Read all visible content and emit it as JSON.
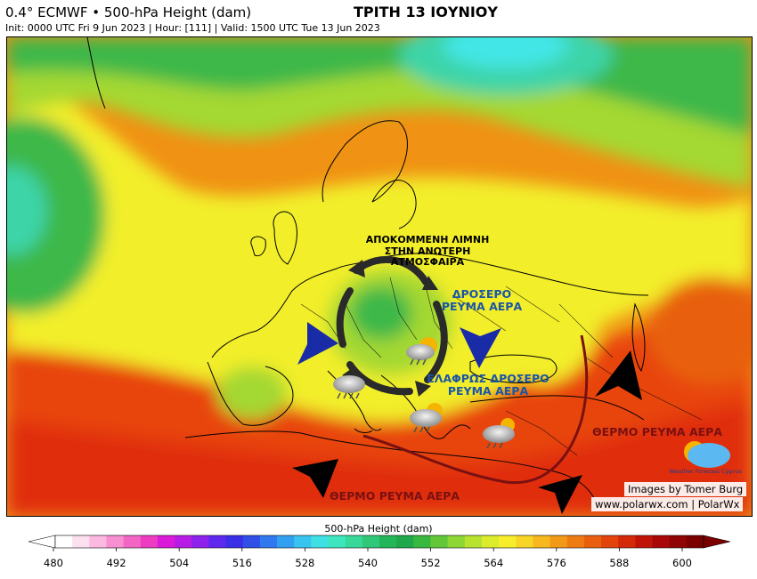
{
  "header": {
    "model": "0.4° ECMWF • 500-hPa Height (dam)",
    "init": "Init: 0000 UTC Fri 9 Jun 2023 | Hour: [111] | Valid: 1500 UTC Tue 13 Jun 2023",
    "title": "ΤΡΙΤΗ 13 ΙΟΥΝΙΟΥ"
  },
  "annotations": {
    "cutoff_low": [
      "ΑΠΟΚΟΜΜΕΝΗ ΛΙΜΝΗ",
      "ΣΤΗΝ ΑΝΩΤΕΡΗ",
      "ΑΤΜΟΣΦΑΙΡΑ"
    ],
    "cool_flow": [
      "ΔΡΟΣΕΡΟ",
      "ΡΕΥΜΑ ΑΕΡΑ"
    ],
    "slightly_cool_flow": [
      "ΕΛΑΦΡΩΣ ΔΡΟΣΕΡΟ",
      "ΡΕΥΜΑ ΑΕΡΑ"
    ],
    "warm_flow_east": "ΘΕΡΜΟ ΡΕΥΜΑ ΑΕΡΑ",
    "warm_flow_south": "ΘΕΡΜΟ ΡΕΥΜΑ ΑΕΡΑ"
  },
  "credits": {
    "logo_text": "Weather Forecast Cyprus",
    "line1": "Images by Tomer Burg",
    "line2": "www.polarwx.com | PolarWx"
  },
  "colorbar": {
    "label": "500-hPa Height (dam)",
    "ticks": [
      "480",
      "492",
      "504",
      "516",
      "528",
      "540",
      "552",
      "564",
      "576",
      "588",
      "600"
    ],
    "colors": [
      "#ffffff",
      "#fde0f0",
      "#fbb8e0",
      "#f78fd0",
      "#f266c4",
      "#ec3dc0",
      "#d91ad8",
      "#b61ce6",
      "#8c22ec",
      "#5f28ee",
      "#3a2ee6",
      "#2f4fe6",
      "#2f78ee",
      "#32a0f0",
      "#38c4ee",
      "#3ee0e4",
      "#3ee6bf",
      "#38d89a",
      "#2ec878",
      "#22b658",
      "#1ea84a",
      "#38b83e",
      "#62c83a",
      "#8ed634",
      "#b8e230",
      "#dcec2c",
      "#f6ee2a",
      "#f8d424",
      "#f6b81e",
      "#f29a18",
      "#ee7c12",
      "#e8600e",
      "#e2440c",
      "#d42a0a",
      "#c01408",
      "#a80808",
      "#900404",
      "#7a0000"
    ]
  },
  "map_colors": {
    "background": "#f09214",
    "south": "#e8440c",
    "sahara": "#e02e0a",
    "yellow": "#f2ee2a",
    "light_green": "#a4d832",
    "green": "#3cb84a",
    "teal": "#3ed4a8",
    "cyan": "#42e6e6"
  }
}
